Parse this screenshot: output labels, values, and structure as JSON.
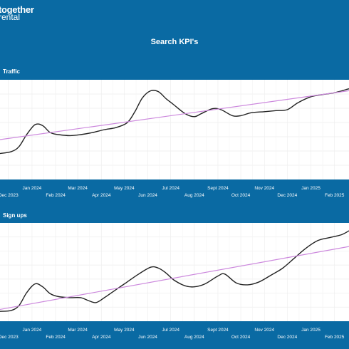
{
  "brand": {
    "line1": "together",
    "line2": "rental"
  },
  "page_title": "Search KPI's",
  "chart_data": [
    {
      "type": "line",
      "title": "Traffic",
      "x_ticks": [
        {
          "label": "Dec 2023",
          "date": "2023-12-01",
          "row": 2
        },
        {
          "label": "Jan 2024",
          "date": "2024-01-01",
          "row": 1
        },
        {
          "label": "Feb 2024",
          "date": "2024-02-01",
          "row": 2
        },
        {
          "label": "Mar 2024",
          "date": "2024-03-01",
          "row": 1
        },
        {
          "label": "Apr 2024",
          "date": "2024-04-01",
          "row": 2
        },
        {
          "label": "May 2024",
          "date": "2024-05-01",
          "row": 1
        },
        {
          "label": "Jun 2024",
          "date": "2024-06-01",
          "row": 2
        },
        {
          "label": "Jul 2024",
          "date": "2024-07-01",
          "row": 1
        },
        {
          "label": "Aug 2024",
          "date": "2024-08-01",
          "row": 2
        },
        {
          "label": "Sept 2024",
          "date": "2024-09-01",
          "row": 1
        },
        {
          "label": "Oct 2024",
          "date": "2024-10-01",
          "row": 2
        },
        {
          "label": "Nov 2024",
          "date": "2024-11-01",
          "row": 1
        },
        {
          "label": "Dec 2024",
          "date": "2024-12-01",
          "row": 2
        },
        {
          "label": "Jan 2025",
          "date": "2025-01-01",
          "row": 1
        },
        {
          "label": "Feb 2025",
          "date": "2025-02-01",
          "row": 2
        }
      ],
      "xlim": [
        "2023-11-20",
        "2025-02-20"
      ],
      "ylim": [
        0,
        100
      ],
      "grid": true,
      "series": [
        {
          "role": "actual",
          "color": "#222222",
          "points": [
            [
              "2023-11-20",
              26
            ],
            [
              "2023-12-05",
              28
            ],
            [
              "2023-12-15",
              33
            ],
            [
              "2023-12-25",
              45
            ],
            [
              "2024-01-05",
              55
            ],
            [
              "2024-01-15",
              54
            ],
            [
              "2024-01-25",
              47
            ],
            [
              "2024-02-05",
              45
            ],
            [
              "2024-02-20",
              44
            ],
            [
              "2024-03-05",
              45
            ],
            [
              "2024-03-20",
              47
            ],
            [
              "2024-04-05",
              50
            ],
            [
              "2024-04-20",
              52
            ],
            [
              "2024-05-05",
              57
            ],
            [
              "2024-05-15",
              68
            ],
            [
              "2024-05-25",
              82
            ],
            [
              "2024-06-05",
              89
            ],
            [
              "2024-06-15",
              88
            ],
            [
              "2024-06-25",
              81
            ],
            [
              "2024-07-05",
              75
            ],
            [
              "2024-07-20",
              66
            ],
            [
              "2024-08-01",
              63
            ],
            [
              "2024-08-10",
              66
            ],
            [
              "2024-08-25",
              71
            ],
            [
              "2024-09-05",
              70
            ],
            [
              "2024-09-20",
              64
            ],
            [
              "2024-10-01",
              64
            ],
            [
              "2024-10-15",
              67
            ],
            [
              "2024-11-01",
              68
            ],
            [
              "2024-11-15",
              69
            ],
            [
              "2024-12-01",
              70
            ],
            [
              "2024-12-15",
              77
            ],
            [
              "2025-01-01",
              83
            ],
            [
              "2025-01-15",
              85
            ],
            [
              "2025-02-01",
              87
            ],
            [
              "2025-02-20",
              91
            ]
          ]
        },
        {
          "role": "trend",
          "color": "#cc88dd",
          "points": [
            [
              "2023-11-20",
              40
            ],
            [
              "2025-02-20",
              89
            ]
          ]
        }
      ]
    },
    {
      "type": "line",
      "title": "Sign ups",
      "x_ticks": [
        {
          "label": "Dec 2023",
          "date": "2023-12-01",
          "row": 2
        },
        {
          "label": "Jan 2024",
          "date": "2024-01-01",
          "row": 1
        },
        {
          "label": "Feb 2024",
          "date": "2024-02-01",
          "row": 2
        },
        {
          "label": "Mar 2024",
          "date": "2024-03-01",
          "row": 1
        },
        {
          "label": "Apr 2024",
          "date": "2024-04-01",
          "row": 2
        },
        {
          "label": "May 2024",
          "date": "2024-05-01",
          "row": 1
        },
        {
          "label": "Jun 2024",
          "date": "2024-06-01",
          "row": 2
        },
        {
          "label": "Jul 2024",
          "date": "2024-07-01",
          "row": 1
        },
        {
          "label": "Aug 2024",
          "date": "2024-08-01",
          "row": 2
        },
        {
          "label": "Sept 2024",
          "date": "2024-09-01",
          "row": 1
        },
        {
          "label": "Oct 2024",
          "date": "2024-10-01",
          "row": 2
        },
        {
          "label": "Nov 2024",
          "date": "2024-11-01",
          "row": 1
        },
        {
          "label": "Dec 2024",
          "date": "2024-12-01",
          "row": 2
        },
        {
          "label": "Jan 2025",
          "date": "2025-01-01",
          "row": 1
        },
        {
          "label": "Feb 2025",
          "date": "2025-02-01",
          "row": 2
        }
      ],
      "xlim": [
        "2023-11-20",
        "2025-02-20"
      ],
      "ylim": [
        0,
        100
      ],
      "grid": true,
      "series": [
        {
          "role": "actual",
          "color": "#222222",
          "points": [
            [
              "2023-11-20",
              10
            ],
            [
              "2023-12-05",
              11
            ],
            [
              "2023-12-15",
              16
            ],
            [
              "2023-12-25",
              29
            ],
            [
              "2024-01-05",
              38
            ],
            [
              "2024-01-15",
              35
            ],
            [
              "2024-01-25",
              28
            ],
            [
              "2024-02-05",
              25
            ],
            [
              "2024-02-20",
              24
            ],
            [
              "2024-03-05",
              24
            ],
            [
              "2024-03-15",
              21
            ],
            [
              "2024-03-25",
              19
            ],
            [
              "2024-04-05",
              24
            ],
            [
              "2024-04-20",
              32
            ],
            [
              "2024-05-05",
              40
            ],
            [
              "2024-05-20",
              48
            ],
            [
              "2024-06-05",
              55
            ],
            [
              "2024-06-15",
              54
            ],
            [
              "2024-06-25",
              49
            ],
            [
              "2024-07-05",
              42
            ],
            [
              "2024-07-20",
              36
            ],
            [
              "2024-08-01",
              35
            ],
            [
              "2024-08-15",
              38
            ],
            [
              "2024-09-01",
              46
            ],
            [
              "2024-09-10",
              48
            ],
            [
              "2024-09-25",
              39
            ],
            [
              "2024-10-10",
              37
            ],
            [
              "2024-10-25",
              40
            ],
            [
              "2024-11-10",
              47
            ],
            [
              "2024-11-25",
              54
            ],
            [
              "2024-12-10",
              64
            ],
            [
              "2024-12-25",
              74
            ],
            [
              "2025-01-10",
              82
            ],
            [
              "2025-01-25",
              85
            ],
            [
              "2025-02-10",
              88
            ],
            [
              "2025-02-20",
              92
            ]
          ]
        },
        {
          "role": "trend",
          "color": "#cc88dd",
          "points": [
            [
              "2023-11-20",
              12
            ],
            [
              "2025-02-20",
              76
            ]
          ]
        }
      ]
    }
  ]
}
